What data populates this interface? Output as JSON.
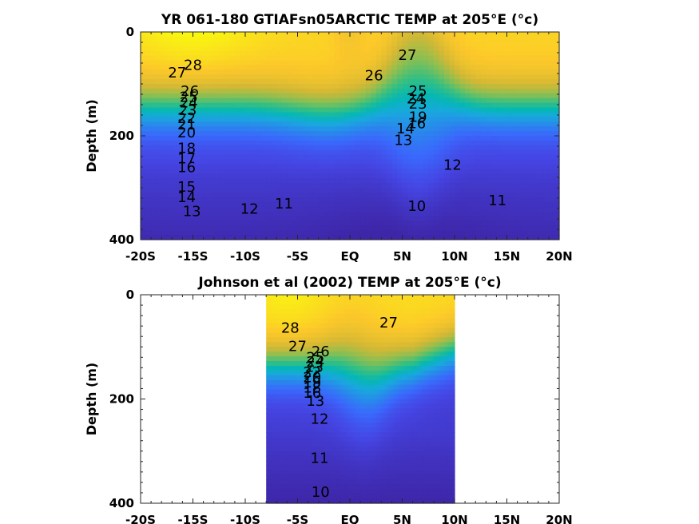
{
  "chart_data": [
    {
      "type": "heatmap",
      "panel": "top",
      "title": "YR 061-180 GTIAFsn05ARCTIC TEMP at 205°E (°c)",
      "ylabel": "Depth (m)",
      "xlabel": "",
      "x_ticks": [
        "-20S",
        "-15S",
        "-10S",
        "-5S",
        "EQ",
        "5N",
        "10N",
        "15N",
        "20N"
      ],
      "x_values": [
        -20,
        -15,
        -10,
        -5,
        0,
        5,
        10,
        15,
        20
      ],
      "y_ticks": [
        "0",
        "200",
        "400"
      ],
      "y_values": [
        0,
        200,
        400
      ],
      "xlim": [
        -20,
        20
      ],
      "ylim": [
        0,
        400
      ],
      "y_reversed": true,
      "data_extent": [
        -20,
        20
      ],
      "colormap": "parula",
      "color_range": [
        9,
        29
      ],
      "contour_labels": [
        {
          "text": "28",
          "lat": -15,
          "depth": 65
        },
        {
          "text": "27",
          "lat": -16.5,
          "depth": 80
        },
        {
          "text": "26",
          "lat": -15.3,
          "depth": 115
        },
        {
          "text": "25",
          "lat": -15.4,
          "depth": 127
        },
        {
          "text": "24",
          "lat": -15.4,
          "depth": 138
        },
        {
          "text": "23",
          "lat": -15.5,
          "depth": 152
        },
        {
          "text": "22",
          "lat": -15.6,
          "depth": 168
        },
        {
          "text": "21",
          "lat": -15.6,
          "depth": 180
        },
        {
          "text": "20",
          "lat": -15.6,
          "depth": 195
        },
        {
          "text": "18",
          "lat": -15.6,
          "depth": 225
        },
        {
          "text": "17",
          "lat": -15.6,
          "depth": 245
        },
        {
          "text": "16",
          "lat": -15.6,
          "depth": 262
        },
        {
          "text": "15",
          "lat": -15.6,
          "depth": 300
        },
        {
          "text": "14",
          "lat": -15.6,
          "depth": 320
        },
        {
          "text": "13",
          "lat": -15.1,
          "depth": 347
        },
        {
          "text": "12",
          "lat": -9.6,
          "depth": 342
        },
        {
          "text": "11",
          "lat": -6.3,
          "depth": 332
        },
        {
          "text": "26",
          "lat": 2.3,
          "depth": 85
        },
        {
          "text": "27",
          "lat": 5.5,
          "depth": 46
        },
        {
          "text": "25",
          "lat": 6.5,
          "depth": 115
        },
        {
          "text": "24",
          "lat": 6.3,
          "depth": 130
        },
        {
          "text": "23",
          "lat": 6.5,
          "depth": 140
        },
        {
          "text": "19",
          "lat": 6.5,
          "depth": 165
        },
        {
          "text": "16",
          "lat": 6.4,
          "depth": 178
        },
        {
          "text": "14",
          "lat": 5.3,
          "depth": 188
        },
        {
          "text": "13",
          "lat": 5.1,
          "depth": 210
        },
        {
          "text": "12",
          "lat": 9.8,
          "depth": 258
        },
        {
          "text": "11",
          "lat": 14.1,
          "depth": 326
        },
        {
          "text": "10",
          "lat": 6.4,
          "depth": 337
        }
      ]
    },
    {
      "type": "heatmap",
      "panel": "bottom",
      "title": "Johnson et al (2002) TEMP at 205°E (°c)",
      "ylabel": "Depth (m)",
      "xlabel": "",
      "x_ticks": [
        "-20S",
        "-15S",
        "-10S",
        "-5S",
        "EQ",
        "5N",
        "10N",
        "15N",
        "20N"
      ],
      "x_values": [
        -20,
        -15,
        -10,
        -5,
        0,
        5,
        10,
        15,
        20
      ],
      "y_ticks": [
        "0",
        "200",
        "400"
      ],
      "y_values": [
        0,
        200,
        400
      ],
      "xlim": [
        -20,
        20
      ],
      "ylim": [
        0,
        400
      ],
      "y_reversed": true,
      "data_extent": [
        -8,
        10
      ],
      "colormap": "parula",
      "color_range": [
        9,
        29
      ],
      "contour_labels": [
        {
          "text": "28",
          "lat": -5.7,
          "depth": 65
        },
        {
          "text": "27",
          "lat": -5.0,
          "depth": 100
        },
        {
          "text": "26",
          "lat": -2.8,
          "depth": 110
        },
        {
          "text": "25",
          "lat": -3.3,
          "depth": 122
        },
        {
          "text": "24",
          "lat": -3.3,
          "depth": 130
        },
        {
          "text": "23",
          "lat": -3.4,
          "depth": 140
        },
        {
          "text": "22",
          "lat": -3.6,
          "depth": 150
        },
        {
          "text": "20",
          "lat": -3.6,
          "depth": 160
        },
        {
          "text": "19",
          "lat": -3.6,
          "depth": 170
        },
        {
          "text": "18",
          "lat": -3.6,
          "depth": 180
        },
        {
          "text": "16",
          "lat": -3.6,
          "depth": 190
        },
        {
          "text": "13",
          "lat": -3.3,
          "depth": 205
        },
        {
          "text": "12",
          "lat": -2.9,
          "depth": 240
        },
        {
          "text": "27",
          "lat": 3.7,
          "depth": 55
        },
        {
          "text": "11",
          "lat": -2.9,
          "depth": 315
        },
        {
          "text": "10",
          "lat": -2.8,
          "depth": 380
        }
      ]
    }
  ]
}
